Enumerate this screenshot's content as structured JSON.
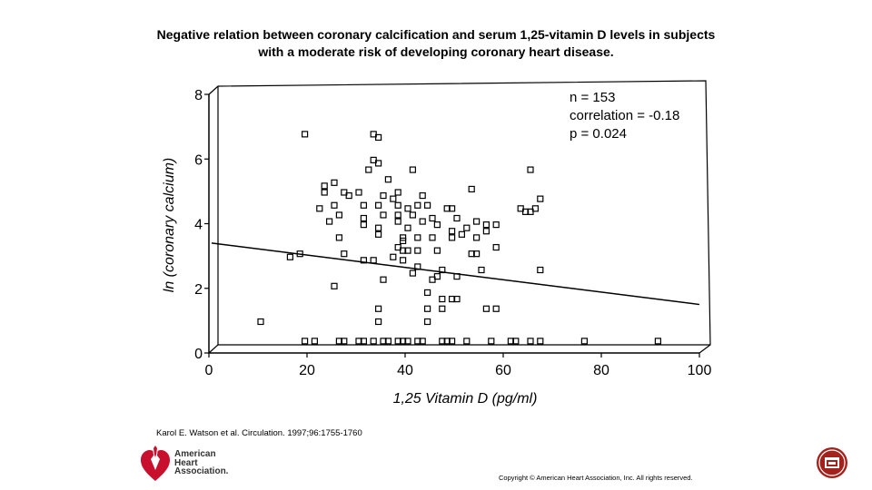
{
  "slide": {
    "title_line1": "Negative relation between coronary calcification and serum 1,25-vitamin D levels in subjects",
    "title_line2": "with a moderate risk of developing coronary heart disease.",
    "citation": "Karol E. Watson et al. Circulation. 1997;96:1755-1760",
    "copyright": "Copyright © American Heart Association, Inc. All rights reserved.",
    "logo": {
      "line1": "American",
      "line2": "Heart",
      "line3": "Association.",
      "icon": "heart-torch-icon",
      "color": "#c8102e"
    },
    "nav_icon": "home-icon",
    "nav_color": "#a3221c"
  },
  "chart_data": {
    "type": "scatter",
    "xlabel": "1,25 Vitamin D (pg/ml)",
    "ylabel": "ln (coronary calcium)",
    "xlim": [
      0,
      100
    ],
    "ylim": [
      0,
      8
    ],
    "xticks": [
      "0",
      "20",
      "40",
      "60",
      "80",
      "100"
    ],
    "yticks": [
      "0",
      "2",
      "4",
      "6",
      "8"
    ],
    "annotations": [
      "n = 153",
      "correlation = -0.18",
      "p = 0.024"
    ],
    "regression_line": {
      "x": [
        0,
        100
      ],
      "y": [
        3.4,
        1.5
      ]
    },
    "points": [
      [
        10,
        0.8
      ],
      [
        19,
        6.6
      ],
      [
        33,
        6.6
      ],
      [
        34,
        6.5
      ],
      [
        33,
        5.8
      ],
      [
        34,
        5.7
      ],
      [
        32,
        5.5
      ],
      [
        41,
        5.5
      ],
      [
        65,
        5.5
      ],
      [
        36,
        5.2
      ],
      [
        25,
        5.1
      ],
      [
        23,
        5.0
      ],
      [
        23,
        4.8
      ],
      [
        27,
        4.8
      ],
      [
        28,
        4.7
      ],
      [
        30,
        4.8
      ],
      [
        35,
        4.7
      ],
      [
        37,
        4.6
      ],
      [
        38,
        4.8
      ],
      [
        43,
        4.7
      ],
      [
        53,
        4.9
      ],
      [
        67,
        4.6
      ],
      [
        25,
        4.4
      ],
      [
        31,
        4.4
      ],
      [
        34,
        4.4
      ],
      [
        38,
        4.4
      ],
      [
        40,
        4.3
      ],
      [
        42,
        4.4
      ],
      [
        44,
        4.4
      ],
      [
        49,
        4.3
      ],
      [
        22,
        4.3
      ],
      [
        26,
        4.1
      ],
      [
        31,
        4.0
      ],
      [
        35,
        4.1
      ],
      [
        38,
        4.1
      ],
      [
        41,
        4.1
      ],
      [
        45,
        4.0
      ],
      [
        48,
        4.3
      ],
      [
        50,
        4.0
      ],
      [
        54,
        3.9
      ],
      [
        63,
        4.3
      ],
      [
        64,
        4.2
      ],
      [
        65,
        4.2
      ],
      [
        66,
        4.3
      ],
      [
        24,
        3.9
      ],
      [
        31,
        3.8
      ],
      [
        34,
        3.7
      ],
      [
        38,
        3.9
      ],
      [
        40,
        3.7
      ],
      [
        43,
        3.9
      ],
      [
        46,
        3.8
      ],
      [
        49,
        3.6
      ],
      [
        52,
        3.7
      ],
      [
        56,
        3.8
      ],
      [
        58,
        3.8
      ],
      [
        26,
        3.4
      ],
      [
        34,
        3.5
      ],
      [
        39,
        3.4
      ],
      [
        42,
        3.4
      ],
      [
        45,
        3.4
      ],
      [
        49,
        3.4
      ],
      [
        51,
        3.5
      ],
      [
        54,
        3.4
      ],
      [
        56,
        3.6
      ],
      [
        39,
        3.3
      ],
      [
        38,
        3.1
      ],
      [
        39,
        3.0
      ],
      [
        40,
        3.0
      ],
      [
        42,
        3.0
      ],
      [
        46,
        3.0
      ],
      [
        16,
        2.8
      ],
      [
        18,
        2.9
      ],
      [
        27,
        2.9
      ],
      [
        31,
        2.7
      ],
      [
        33,
        2.7
      ],
      [
        37,
        2.8
      ],
      [
        39,
        2.7
      ],
      [
        42,
        2.5
      ],
      [
        47,
        2.4
      ],
      [
        53,
        2.9
      ],
      [
        54,
        2.9
      ],
      [
        58,
        3.1
      ],
      [
        67,
        2.4
      ],
      [
        41,
        2.3
      ],
      [
        46,
        2.2
      ],
      [
        50,
        2.2
      ],
      [
        55,
        2.4
      ],
      [
        35,
        2.1
      ],
      [
        45,
        2.1
      ],
      [
        25,
        1.9
      ],
      [
        44,
        1.7
      ],
      [
        47,
        1.5
      ],
      [
        49,
        1.5
      ],
      [
        50,
        1.5
      ],
      [
        34,
        1.2
      ],
      [
        44,
        1.2
      ],
      [
        47,
        1.2
      ],
      [
        56,
        1.2
      ],
      [
        58,
        1.2
      ],
      [
        34,
        0.8
      ],
      [
        44,
        0.8
      ],
      [
        19,
        0.2
      ],
      [
        21,
        0.2
      ],
      [
        26,
        0.2
      ],
      [
        27,
        0.2
      ],
      [
        30,
        0.2
      ],
      [
        31,
        0.2
      ],
      [
        33,
        0.2
      ],
      [
        35,
        0.2
      ],
      [
        36,
        0.2
      ],
      [
        38,
        0.2
      ],
      [
        39,
        0.2
      ],
      [
        40,
        0.2
      ],
      [
        42,
        0.2
      ],
      [
        43,
        0.2
      ],
      [
        47,
        0.2
      ],
      [
        48,
        0.2
      ],
      [
        49,
        0.2
      ],
      [
        52,
        0.2
      ],
      [
        57,
        0.2
      ],
      [
        61,
        0.2
      ],
      [
        62,
        0.2
      ],
      [
        65,
        0.2
      ],
      [
        67,
        0.2
      ],
      [
        76,
        0.2
      ],
      [
        91,
        0.2
      ]
    ]
  }
}
